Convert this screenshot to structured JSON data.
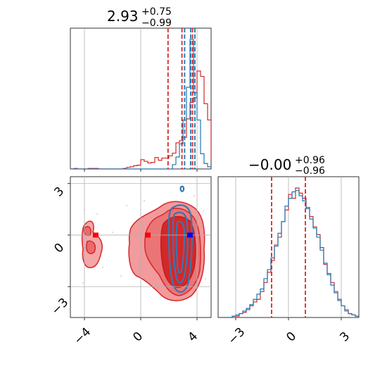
{
  "chart_data": [
    {
      "type": "histogram",
      "panel": "param1-marginal",
      "title_main": "2.93",
      "title_plus": "+0.75",
      "title_minus": "−0.99",
      "xlim": [
        -5,
        5
      ],
      "bin_edges_start": -5,
      "bin_width": 0.25,
      "series": [
        {
          "name": "red",
          "color": "#d62728",
          "counts": [
            0,
            1,
            0,
            0,
            0,
            1,
            1,
            1,
            0,
            0,
            0,
            0,
            0,
            0,
            0,
            1,
            3,
            4,
            6,
            7,
            17,
            14,
            11,
            12,
            21,
            16,
            20,
            20,
            24,
            29,
            48,
            52,
            58,
            92,
            122,
            131,
            180,
            170,
            120,
            90,
            20,
            8
          ]
        },
        {
          "name": "blue",
          "color": "#1f77b4",
          "counts": [
            0,
            0,
            0,
            0,
            0,
            0,
            0,
            0,
            0,
            0,
            0,
            0,
            0,
            0,
            0,
            0,
            0,
            0,
            0,
            0,
            0,
            0,
            0,
            0,
            0,
            0,
            0,
            0,
            0,
            8,
            22,
            46,
            90,
            150,
            238,
            140,
            90,
            28,
            10,
            4,
            2,
            0
          ]
        }
      ],
      "quantile_lines": [
        {
          "color": "#d62728",
          "x": [
            1.94,
            2.93,
            3.68
          ]
        },
        {
          "color": "#1f77b4",
          "x": [
            3.12,
            3.55,
            3.85
          ]
        }
      ]
    },
    {
      "type": "contour",
      "panel": "2d-joint",
      "xlim": [
        -5,
        5
      ],
      "ylim": [
        -4.8,
        3.4
      ],
      "xticks": [
        "−4",
        "0",
        "4"
      ],
      "xtick_values": [
        -4,
        0,
        4
      ],
      "yticks": [
        "−3",
        "0",
        "3"
      ],
      "ytick_values": [
        -3,
        0,
        3
      ],
      "markers": [
        {
          "color": "#ff0000",
          "x": -3.2,
          "y": 0
        },
        {
          "color": "#ff0000",
          "x": 0.5,
          "y": 0
        },
        {
          "color": "#0000ff",
          "x": 3.5,
          "y": 0
        }
      ]
    },
    {
      "type": "histogram",
      "panel": "param2-marginal",
      "title_main": "−0.00",
      "title_plus": "+0.96",
      "title_minus": "−0.96",
      "xlim": [
        -4,
        4
      ],
      "xticks": [
        "−3",
        "0",
        "3"
      ],
      "xtick_values": [
        -3,
        0,
        3
      ],
      "bin_edges_start": -4,
      "bin_width": 0.2,
      "series": [
        {
          "name": "red",
          "color": "#d62728",
          "counts": [
            0,
            0,
            0,
            0,
            1,
            1,
            3,
            4,
            6,
            9,
            12,
            14,
            20,
            27,
            35,
            44,
            56,
            62,
            74,
            83,
            95,
            92,
            100,
            96,
            92,
            85,
            78,
            70,
            64,
            54,
            41,
            34,
            27,
            20,
            14,
            9,
            6,
            3,
            2,
            1
          ]
        },
        {
          "name": "blue",
          "color": "#1f77b4",
          "counts": [
            0,
            0,
            0,
            0,
            1,
            2,
            3,
            5,
            7,
            10,
            14,
            18,
            22,
            30,
            37,
            46,
            55,
            65,
            74,
            86,
            92,
            97,
            98,
            94,
            90,
            84,
            76,
            69,
            62,
            52,
            42,
            33,
            25,
            19,
            13,
            9,
            5,
            3,
            2,
            1
          ]
        }
      ],
      "quantile_lines": [
        {
          "color": "#d62728",
          "x": [
            -0.96,
            0.96
          ]
        }
      ]
    }
  ]
}
